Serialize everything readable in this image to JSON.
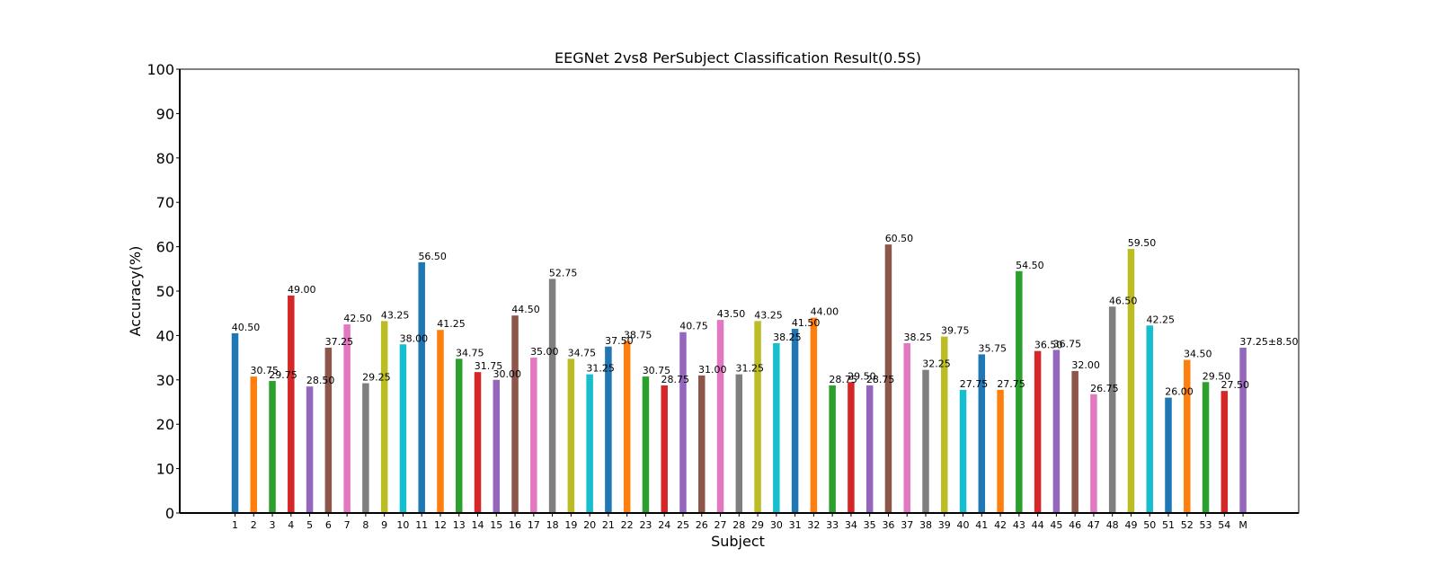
{
  "chart_data": {
    "type": "bar",
    "title": "EEGNet 2vs8 PerSubject Classification Result(0.5S)",
    "xlabel": "Subject",
    "ylabel": "Accuracy(%)",
    "ylim": [
      0,
      100
    ],
    "yticks": [
      0,
      10,
      20,
      30,
      40,
      50,
      60,
      70,
      80,
      90,
      100
    ],
    "grid": false,
    "categories": [
      "1",
      "2",
      "3",
      "4",
      "5",
      "6",
      "7",
      "8",
      "9",
      "10",
      "11",
      "12",
      "13",
      "14",
      "15",
      "16",
      "17",
      "18",
      "19",
      "20",
      "21",
      "22",
      "23",
      "24",
      "25",
      "26",
      "27",
      "28",
      "29",
      "30",
      "31",
      "32",
      "33",
      "34",
      "35",
      "36",
      "37",
      "38",
      "39",
      "40",
      "41",
      "42",
      "43",
      "44",
      "45",
      "46",
      "47",
      "48",
      "49",
      "50",
      "51",
      "52",
      "53",
      "54",
      "M"
    ],
    "values": [
      40.5,
      30.75,
      29.75,
      49.0,
      28.5,
      37.25,
      42.5,
      29.25,
      43.25,
      38.0,
      56.5,
      41.25,
      34.75,
      31.75,
      30.0,
      44.5,
      35.0,
      52.75,
      34.75,
      31.25,
      37.5,
      38.75,
      30.75,
      28.75,
      40.75,
      31.0,
      43.5,
      31.25,
      43.25,
      38.25,
      41.5,
      44.0,
      28.75,
      29.5,
      28.75,
      60.5,
      38.25,
      32.25,
      39.75,
      27.75,
      35.75,
      27.75,
      54.5,
      36.5,
      36.75,
      32.0,
      26.75,
      46.5,
      59.5,
      42.25,
      26.0,
      34.5,
      29.5,
      27.5,
      37.25
    ],
    "value_labels": [
      "40.50",
      "30.75",
      "29.75",
      "49.00",
      "28.50",
      "37.25",
      "42.50",
      "29.25",
      "43.25",
      "38.00",
      "56.50",
      "41.25",
      "34.75",
      "31.75",
      "30.00",
      "44.50",
      "35.00",
      "52.75",
      "34.75",
      "31.25",
      "37.50",
      "38.75",
      "30.75",
      "28.75",
      "40.75",
      "31.00",
      "43.50",
      "31.25",
      "43.25",
      "38.25",
      "41.50",
      "44.00",
      "28.75",
      "29.50",
      "28.75",
      "60.50",
      "38.25",
      "32.25",
      "39.75",
      "27.75",
      "35.75",
      "27.75",
      "54.50",
      "36.50",
      "36.75",
      "32.00",
      "26.75",
      "46.50",
      "59.50",
      "42.25",
      "26.00",
      "34.50",
      "29.50",
      "27.50",
      "37.25±8.50"
    ],
    "colors": [
      "#1f77b4",
      "#ff7f0e",
      "#2ca02c",
      "#d62728",
      "#9467bd",
      "#8c564b",
      "#e377c2",
      "#7f7f7f",
      "#bcbd22",
      "#17becf"
    ],
    "mean_label_color": "#ff0000"
  }
}
